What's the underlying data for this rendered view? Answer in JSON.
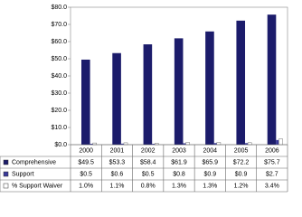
{
  "chart_data": {
    "type": "bar",
    "categories": [
      "2000",
      "2001",
      "2002",
      "2003",
      "2004",
      "2005",
      "2006"
    ],
    "series": [
      {
        "name": "Comprehensive",
        "color": "#1c1c6b",
        "values": [
          49.5,
          53.3,
          58.4,
          61.9,
          65.9,
          72.2,
          75.7
        ],
        "value_labels": [
          "$49.5",
          "$53.3",
          "$58.4",
          "$61.9",
          "$65.9",
          "$72.2",
          "$75.7"
        ]
      },
      {
        "name": "Support",
        "color": "#3a3a9a",
        "values": [
          0.5,
          0.6,
          0.5,
          0.8,
          0.9,
          0.9,
          2.7
        ],
        "value_labels": [
          "$0.5",
          "$0.6",
          "$0.5",
          "$0.8",
          "$0.9",
          "$0.9",
          "$2.7"
        ]
      },
      {
        "name": "% Support Waiver",
        "color": "#ffffff",
        "values": [
          1.0,
          1.1,
          0.8,
          1.3,
          1.3,
          1.2,
          3.4
        ],
        "value_labels": [
          "1.0%",
          "1.1%",
          "0.8%",
          "1.3%",
          "1.3%",
          "1.2%",
          "3.4%"
        ]
      }
    ],
    "ylim": [
      0,
      80
    ],
    "yticks": [
      {
        "value": 0,
        "label": "$0.0"
      },
      {
        "value": 10,
        "label": "$10.0"
      },
      {
        "value": 20,
        "label": "$20.0"
      },
      {
        "value": 30,
        "label": "$30.0"
      },
      {
        "value": 40,
        "label": "$40.0"
      },
      {
        "value": 50,
        "label": "$50.0"
      },
      {
        "value": 60,
        "label": "$60.0"
      },
      {
        "value": 70,
        "label": "$70.0"
      },
      {
        "value": 80,
        "label": "$80.0"
      }
    ]
  }
}
